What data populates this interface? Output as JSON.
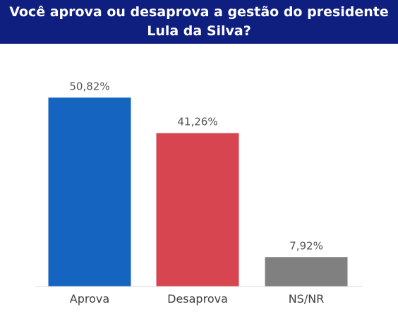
{
  "chart_data": {
    "type": "bar",
    "title": "Você aprova ou desaprova a gestão do presidente Lula da Silva?",
    "categories": [
      "Aprova",
      "Desaprova",
      "NS/NR"
    ],
    "values": [
      50.82,
      41.26,
      7.92
    ],
    "value_labels": [
      "50,82%",
      "41,26%",
      "7,92%"
    ],
    "colors": [
      "#1565c0",
      "#d64550",
      "#808080"
    ],
    "title_bar_color": "#0f1f80",
    "xlabel": "",
    "ylabel": "",
    "ylim": [
      0,
      60
    ],
    "grid": false,
    "legend": "none"
  }
}
